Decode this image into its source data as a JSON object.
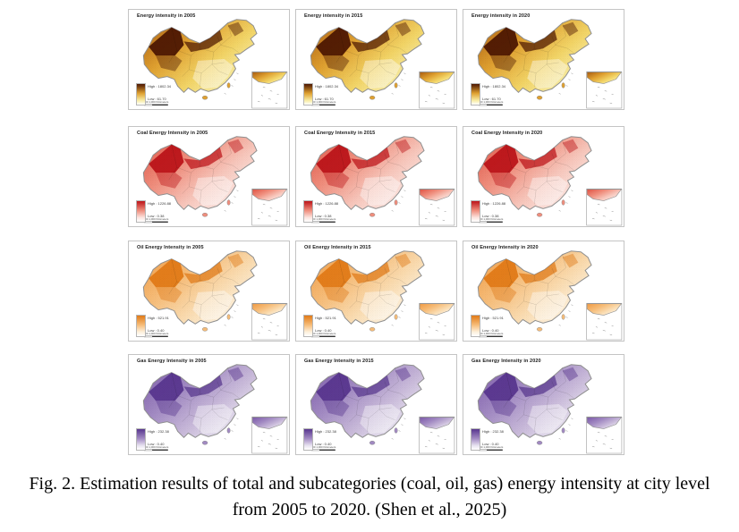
{
  "caption": {
    "line1": "Fig. 2. Estimation results of total and subcategories (coal, oil, gas) energy intensity at city level",
    "line2": "from 2005 to 2020. (Shen et al., 2025)"
  },
  "map_common": {
    "scale_label": "0  250  500        1,000 Kilometers"
  },
  "rows": [
    {
      "name": "total-energy-intensity",
      "palette": {
        "dark": "#4d1702",
        "deep": "#a85a10",
        "mid": "#dfa030",
        "light": "#f2d466",
        "pale": "#f8eda6"
      },
      "legend": {
        "high": "High : 1802.34",
        "low": "Low : 61.70"
      },
      "panels": [
        {
          "title": "Energy intensity in 2005",
          "year": "2005"
        },
        {
          "title": "Energy intensity in 2015",
          "year": "2015"
        },
        {
          "title": "Energy intensity in 2020",
          "year": "2020"
        }
      ]
    },
    {
      "name": "coal-energy-intensity",
      "palette": {
        "dark": "#bc1419",
        "deep": "#de5244",
        "mid": "#ef8d7c",
        "light": "#f7c6bb",
        "pale": "#fce5e0"
      },
      "legend": {
        "high": "High : 1226.88",
        "low": "Low : 0.38"
      },
      "panels": [
        {
          "title": "Coal Energy Intensity in 2005",
          "year": "2005"
        },
        {
          "title": "Coal Energy Intensity in 2015",
          "year": "2015"
        },
        {
          "title": "Coal Energy Intensity in 2020",
          "year": "2020"
        }
      ]
    },
    {
      "name": "oil-energy-intensity",
      "palette": {
        "dark": "#e17a17",
        "deep": "#f09a43",
        "mid": "#f6bc78",
        "light": "#fadcb1",
        "pale": "#fdf1dd"
      },
      "legend": {
        "high": "High : 521.91",
        "low": "Low : 0.40"
      },
      "panels": [
        {
          "title": "Oil Energy Intensity in 2005",
          "year": "2005"
        },
        {
          "title": "Oil Energy Intensity in 2015",
          "year": "2015"
        },
        {
          "title": "Oil Energy Intensity in 2020",
          "year": "2020"
        }
      ]
    },
    {
      "name": "gas-energy-intensity",
      "palette": {
        "dark": "#58368e",
        "deep": "#7a58a8",
        "mid": "#a189c2",
        "light": "#c9bada",
        "pale": "#e8e3f0"
      },
      "legend": {
        "high": "High : 232.38",
        "low": "Low : 0.40"
      },
      "panels": [
        {
          "title": "Gas Energy Intensity in 2005",
          "year": "2005"
        },
        {
          "title": "Gas Energy Intensity in 2015",
          "year": "2015"
        },
        {
          "title": "Gas Energy Intensity in 2020",
          "year": "2020"
        }
      ]
    }
  ],
  "layout_note": "4 rows (total, coal, oil, gas) x 3 columns (2005, 2015, 2020) choropleth maps of China at city level"
}
